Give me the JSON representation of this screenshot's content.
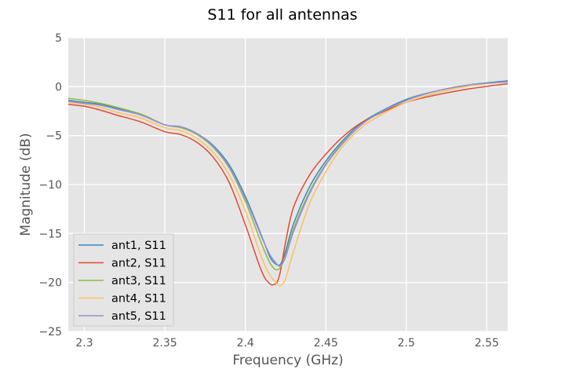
{
  "chart_data": {
    "type": "line",
    "title": "S11 for all antennas",
    "xlabel": "Frequency (GHz)",
    "ylabel": "Magnitude (dB)",
    "xlim": [
      2.29,
      2.563
    ],
    "ylim": [
      -25,
      5
    ],
    "x_ticks": [
      2.3,
      2.35,
      2.4,
      2.45,
      2.5,
      2.55
    ],
    "x_tick_labels": [
      "2.3",
      "2.35",
      "2.4",
      "2.45",
      "2.5",
      "2.55"
    ],
    "y_ticks": [
      5,
      0,
      -5,
      -10,
      -15,
      -20,
      -25
    ],
    "y_tick_labels": [
      "5",
      "0",
      "−5",
      "−10",
      "−15",
      "−20",
      "−25"
    ],
    "grid": true,
    "legend_position": "lower-left",
    "background": "#e5e5e5",
    "x": [
      2.29,
      2.3,
      2.31,
      2.32,
      2.335,
      2.35,
      2.36,
      2.37,
      2.38,
      2.39,
      2.4,
      2.41,
      2.415,
      2.418,
      2.42,
      2.422,
      2.425,
      2.43,
      2.44,
      2.45,
      2.46,
      2.47,
      2.48,
      2.5,
      2.52,
      2.54,
      2.563
    ],
    "series": [
      {
        "name": "ant1, S11",
        "color": "#348abd",
        "values": [
          -1.4,
          -1.6,
          -1.8,
          -2.2,
          -2.8,
          -3.9,
          -4.1,
          -4.8,
          -6.0,
          -8.0,
          -11.2,
          -15.2,
          -17.3,
          -18.0,
          -18.2,
          -18.1,
          -16.8,
          -14.0,
          -10.2,
          -7.6,
          -5.6,
          -4.0,
          -2.9,
          -1.3,
          -0.4,
          0.2,
          0.6
        ]
      },
      {
        "name": "ant2, S11",
        "color": "#e24a33",
        "values": [
          -1.8,
          -2.0,
          -2.4,
          -2.9,
          -3.6,
          -4.6,
          -4.9,
          -5.7,
          -7.2,
          -9.8,
          -14.1,
          -18.8,
          -20.1,
          -20.2,
          -19.9,
          -18.7,
          -15.9,
          -12.3,
          -9.0,
          -6.9,
          -5.2,
          -3.9,
          -3.0,
          -1.6,
          -0.8,
          -0.2,
          0.3
        ]
      },
      {
        "name": "ant3, S11",
        "color": "#8eba42",
        "values": [
          -1.2,
          -1.4,
          -1.7,
          -2.1,
          -2.8,
          -3.9,
          -4.2,
          -4.9,
          -6.2,
          -8.3,
          -11.7,
          -16.0,
          -17.9,
          -18.6,
          -18.7,
          -18.4,
          -17.2,
          -14.5,
          -10.7,
          -7.9,
          -5.8,
          -4.2,
          -3.0,
          -1.4,
          -0.4,
          0.2,
          0.5
        ]
      },
      {
        "name": "ant4, S11",
        "color": "#fbc15e",
        "values": [
          -1.6,
          -1.8,
          -2.1,
          -2.6,
          -3.2,
          -4.2,
          -4.5,
          -5.3,
          -6.7,
          -9.0,
          -12.7,
          -17.4,
          -19.2,
          -19.8,
          -20.2,
          -20.3,
          -19.6,
          -16.8,
          -11.9,
          -8.7,
          -6.2,
          -4.5,
          -3.3,
          -1.6,
          -0.6,
          0.1,
          0.5
        ]
      },
      {
        "name": "ant5, S11",
        "color": "#988ed5",
        "values": [
          -1.5,
          -1.7,
          -1.9,
          -2.3,
          -2.9,
          -3.9,
          -4.1,
          -4.8,
          -6.1,
          -8.2,
          -11.4,
          -15.3,
          -17.1,
          -17.8,
          -18.2,
          -18.3,
          -17.4,
          -14.8,
          -10.9,
          -8.0,
          -5.9,
          -4.2,
          -3.0,
          -1.4,
          -0.4,
          0.2,
          0.5
        ]
      }
    ]
  }
}
